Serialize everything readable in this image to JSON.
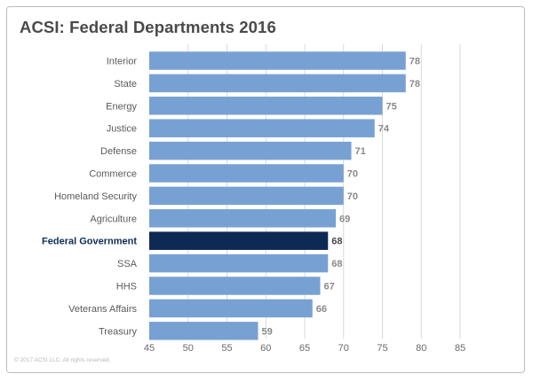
{
  "chart_data": {
    "type": "bar",
    "orientation": "horizontal",
    "title": "ACSI: Federal Departments 2016",
    "categories": [
      "Interior",
      "State",
      "Energy",
      "Justice",
      "Defense",
      "Commerce",
      "Homeland Security",
      "Agriculture",
      "Federal Government",
      "SSA",
      "HHS",
      "Veterans Affairs",
      "Treasury"
    ],
    "values": [
      78,
      78,
      75,
      74,
      71,
      70,
      70,
      69,
      68,
      68,
      67,
      66,
      59
    ],
    "highlight": "Federal Government",
    "xlim": [
      45,
      85
    ],
    "xticks": [
      45,
      50,
      55,
      60,
      65,
      70,
      75,
      80,
      85
    ],
    "grid": true,
    "colors": {
      "bar": "#78a1d3",
      "highlight_bar": "#0e2a54",
      "grid": "#d9d9d9"
    }
  },
  "copyright": "© 2017 ACSI LLC. All rights reserved."
}
